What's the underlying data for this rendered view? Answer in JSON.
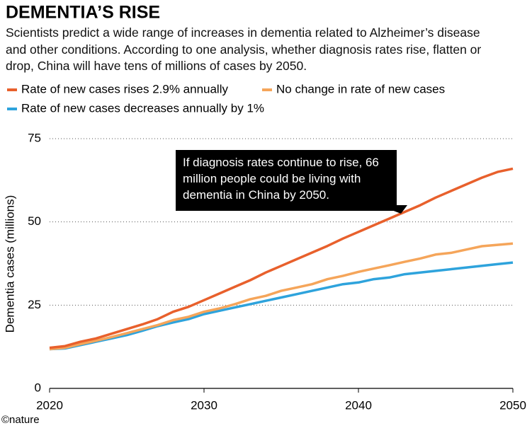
{
  "chart_data": {
    "type": "line",
    "title": "DEMENTIA’S RISE",
    "subtitle": "Scientists predict a wide range of increases in dementia related to Alzheimer’s disease and other conditions. According to one analysis, whether diagnosis rates rise, flatten or drop, China will have tens of millions of cases by 2050.",
    "y_label": "Dementia cases (millions)",
    "annotation": "If diagnosis rates continue to rise, 66 million people could be living with dementia in China by 2050.",
    "source": "©nature",
    "x": [
      2020,
      2021,
      2022,
      2023,
      2024,
      2025,
      2026,
      2027,
      2028,
      2029,
      2030,
      2031,
      2032,
      2033,
      2034,
      2035,
      2036,
      2037,
      2038,
      2039,
      2040,
      2041,
      2042,
      2043,
      2044,
      2045,
      2046,
      2047,
      2048,
      2049,
      2050
    ],
    "series": [
      {
        "name": "Rate of new cases rises 2.9% annually",
        "color": "#e8602c",
        "values": [
          12.2,
          12.7,
          14,
          15,
          16.4,
          17.8,
          19.2,
          20.8,
          23,
          24.5,
          26.5,
          28.5,
          30.5,
          32.5,
          34.8,
          36.8,
          38.8,
          40.8,
          42.8,
          45,
          47,
          49,
          51,
          53,
          55,
          57.3,
          59.3,
          61.3,
          63.3,
          65,
          66
        ]
      },
      {
        "name": "No change in rate of new cases",
        "color": "#f5a55a",
        "values": [
          11.8,
          12.2,
          13.3,
          14.3,
          15.4,
          16.6,
          17.8,
          19,
          20.5,
          21.5,
          23,
          24,
          25.3,
          26.8,
          27.8,
          29.3,
          30.3,
          31.3,
          32.8,
          33.8,
          35,
          36,
          37,
          38,
          39,
          40.2,
          40.7,
          41.7,
          42.7,
          43.1,
          43.5
        ]
      },
      {
        "name": "Rate of new cases decreases annually by 1%",
        "color": "#2ea3dc",
        "values": [
          11.8,
          12,
          13,
          14,
          15,
          16,
          17.3,
          18.7,
          19.8,
          20.8,
          22.3,
          23.3,
          24.3,
          25.3,
          26.3,
          27.3,
          28.3,
          29.3,
          30.3,
          31.3,
          31.8,
          32.8,
          33.3,
          34.3,
          34.8,
          35.3,
          35.8,
          36.3,
          36.8,
          37.3,
          37.8
        ]
      }
    ],
    "xlim": [
      2020,
      2050
    ],
    "xticks": [
      2020,
      2030,
      2040,
      2050
    ],
    "ylim": [
      0,
      75
    ],
    "yticks": [
      0,
      25,
      50,
      75
    ],
    "grid": true
  }
}
